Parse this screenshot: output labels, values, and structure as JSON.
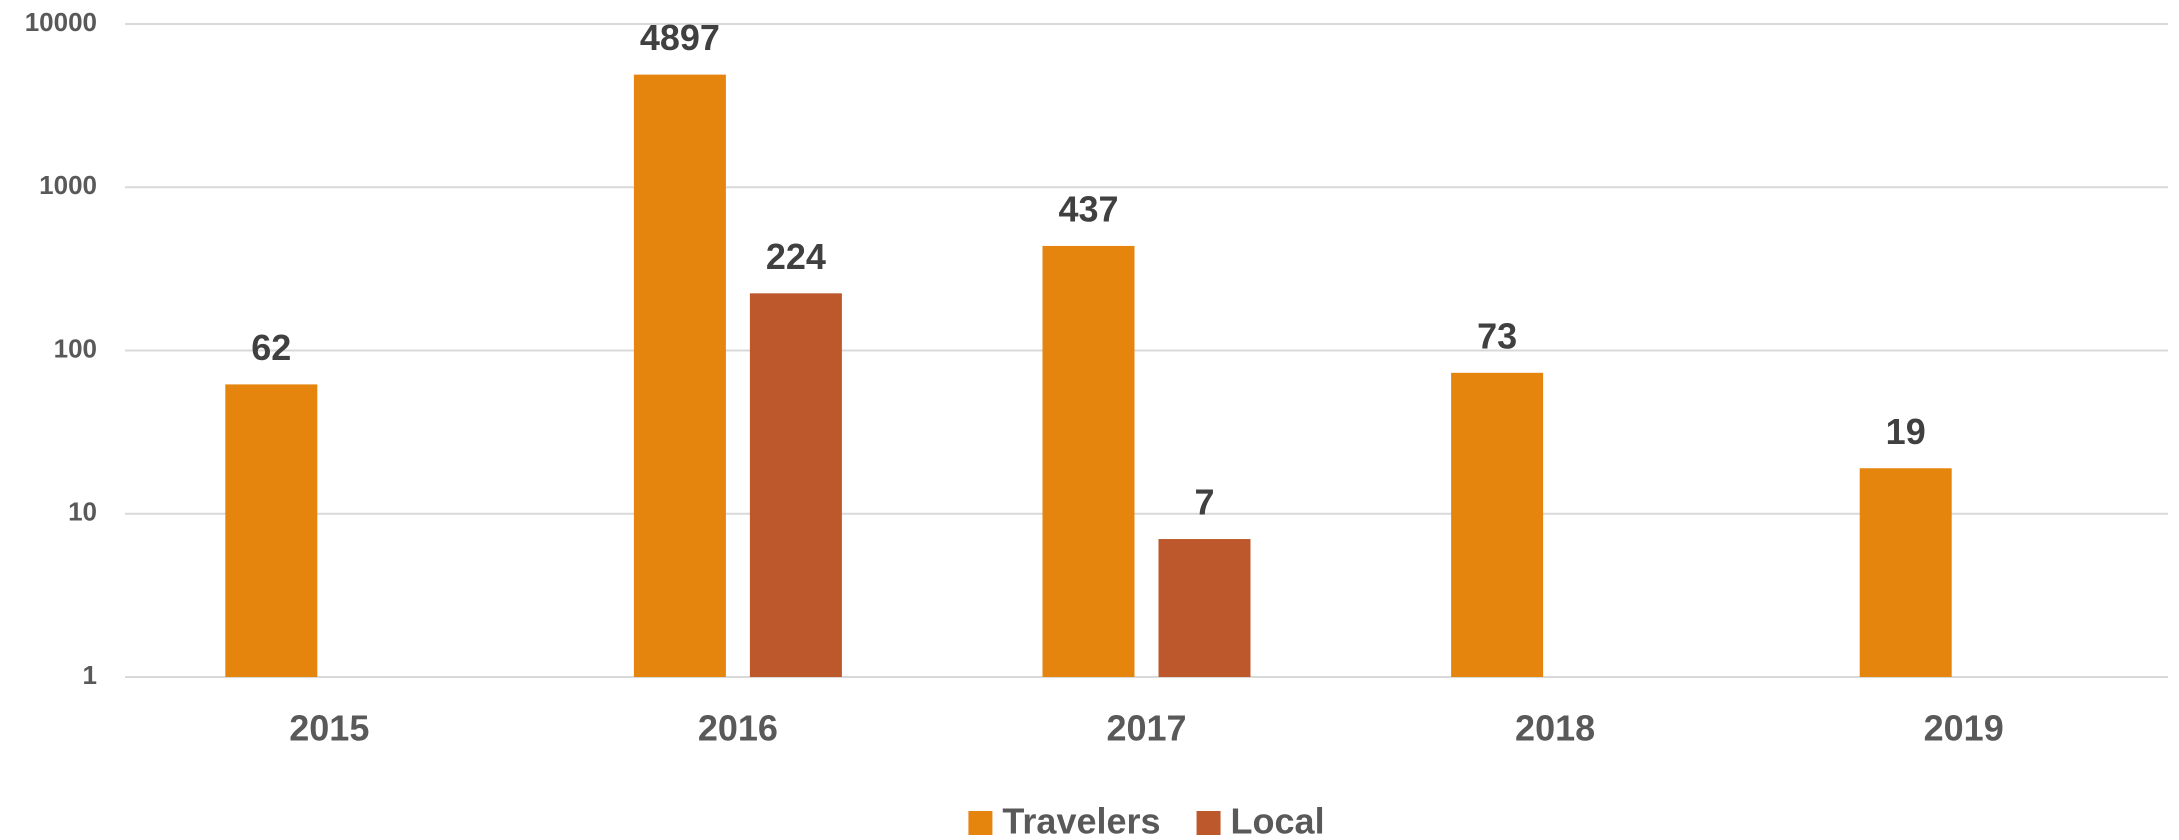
{
  "chart_data": {
    "type": "bar",
    "categories": [
      "2015",
      "2016",
      "2017",
      "2018",
      "2019"
    ],
    "series": [
      {
        "name": "Travelers",
        "color": "#e6850e",
        "values": [
          62,
          4897,
          437,
          73,
          19
        ]
      },
      {
        "name": "Local",
        "color": "#bd582c",
        "values": [
          null,
          224,
          7,
          null,
          null
        ]
      }
    ],
    "ylim": [
      1,
      10000
    ],
    "yticks": [
      1,
      10,
      100,
      1000,
      10000
    ],
    "log_scale": true,
    "grid": true,
    "legend": "bottom"
  }
}
